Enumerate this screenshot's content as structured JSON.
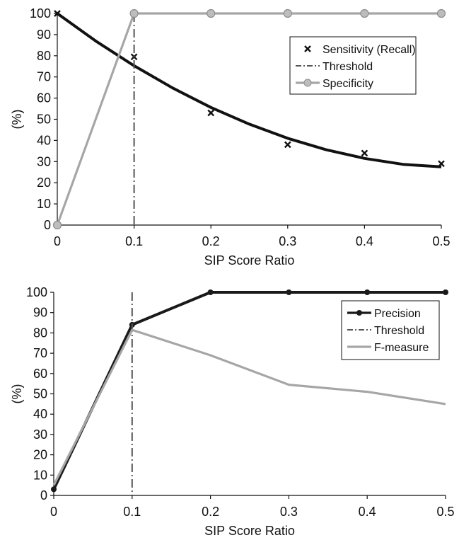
{
  "chart_data": [
    {
      "type": "line",
      "xlabel": "SIP Score Ratio",
      "ylabel": "(%)",
      "xlim": [
        0,
        0.5
      ],
      "ylim": [
        0,
        100
      ],
      "x_ticks": [
        "0",
        "0.1",
        "0.2",
        "0.3",
        "0.4",
        "0.5"
      ],
      "y_ticks": [
        "0",
        "10",
        "20",
        "30",
        "40",
        "50",
        "60",
        "70",
        "80",
        "90",
        "100"
      ],
      "legend_position": "top-right",
      "series": [
        {
          "name": "Sensitivity (Recall)",
          "style": "scatter-with-trend",
          "color": "#111111",
          "points": [
            [
              0,
              100
            ],
            [
              0.1,
              79.5
            ],
            [
              0.2,
              53
            ],
            [
              0.3,
              38
            ],
            [
              0.4,
              34
            ],
            [
              0.5,
              29
            ]
          ],
          "trend": [
            [
              0,
              100
            ],
            [
              0.05,
              87
            ],
            [
              0.1,
              75.3
            ],
            [
              0.15,
              64.8
            ],
            [
              0.2,
              55.6
            ],
            [
              0.25,
              47.7
            ],
            [
              0.3,
              41
            ],
            [
              0.35,
              35.6
            ],
            [
              0.4,
              31.5
            ],
            [
              0.45,
              28.7
            ],
            [
              0.5,
              27.5
            ]
          ]
        },
        {
          "name": "Threshold",
          "style": "vertical-dashdot",
          "color": "#555555",
          "x": 0.1
        },
        {
          "name": "Specificity",
          "style": "line-with-markers",
          "color": "#a6a6a6",
          "points": [
            [
              0,
              0
            ],
            [
              0.1,
              100
            ],
            [
              0.2,
              100
            ],
            [
              0.3,
              100
            ],
            [
              0.4,
              100
            ],
            [
              0.5,
              100
            ]
          ]
        }
      ]
    },
    {
      "type": "line",
      "xlabel": "SIP Score Ratio",
      "ylabel": "(%)",
      "xlim": [
        0,
        0.5
      ],
      "ylim": [
        0,
        100
      ],
      "x_ticks": [
        "0",
        "0.1",
        "0.2",
        "0.3",
        "0.4",
        "0.5"
      ],
      "y_ticks": [
        "0",
        "10",
        "20",
        "30",
        "40",
        "50",
        "60",
        "70",
        "80",
        "90",
        "100"
      ],
      "legend_position": "top-right",
      "series": [
        {
          "name": "Precision",
          "style": "line-with-markers",
          "color": "#1a1a1a",
          "points": [
            [
              0,
              3
            ],
            [
              0.1,
              84
            ],
            [
              0.2,
              100
            ],
            [
              0.3,
              100
            ],
            [
              0.4,
              100
            ],
            [
              0.5,
              100
            ]
          ]
        },
        {
          "name": "Threshold",
          "style": "vertical-dashdot",
          "color": "#555555",
          "x": 0.1
        },
        {
          "name": "F-measure",
          "style": "line",
          "color": "#a6a6a6",
          "points": [
            [
              0,
              5
            ],
            [
              0.1,
              81.5
            ],
            [
              0.2,
              69
            ],
            [
              0.3,
              54.5
            ],
            [
              0.4,
              51
            ],
            [
              0.5,
              45
            ]
          ]
        }
      ]
    }
  ]
}
